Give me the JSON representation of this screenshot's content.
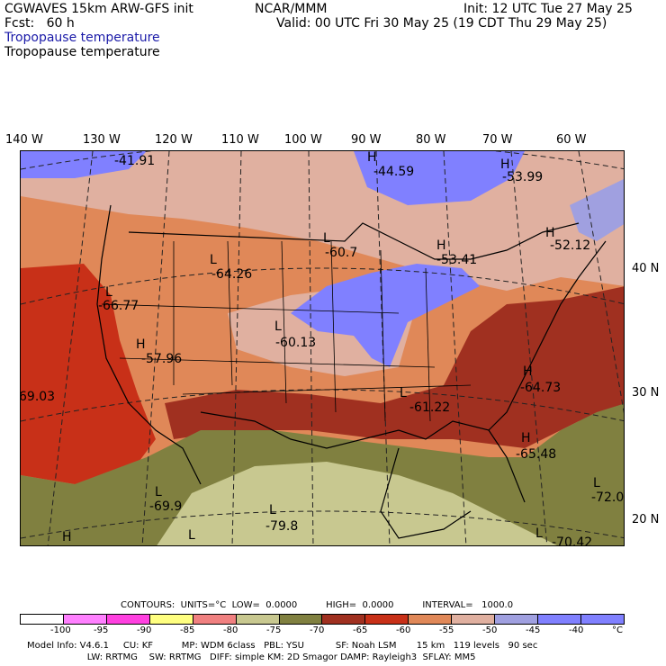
{
  "header": {
    "model": "CGWAVES 15km ARW-GFS init",
    "org": "NCAR/MMM",
    "init": "Init: 12 UTC Tue 27 May 25",
    "fcst": "Fcst:   60 h",
    "valid": "Valid: 00 UTC Fri 30 May 25 (19 CDT Thu 29 May 25)",
    "field1": "Tropopause temperature",
    "field2": "Tropopause temperature"
  },
  "map": {
    "lon_labels": [
      "140 W",
      "130 W",
      "120 W",
      "110 W",
      "100 W",
      "90 W",
      "80 W",
      "70 W",
      "60 W"
    ],
    "lat_labels": [
      "40 N",
      "30 N",
      "20 N"
    ],
    "extrema": [
      {
        "kind": "",
        "value": "-41.91"
      },
      {
        "kind": "H",
        "value": "-44.59"
      },
      {
        "kind": "H",
        "value": "-53.99"
      },
      {
        "kind": "L",
        "value": "-60.7"
      },
      {
        "kind": "H",
        "value": "-53.41"
      },
      {
        "kind": "H",
        "value": "-52.12"
      },
      {
        "kind": "L",
        "value": "-64.26"
      },
      {
        "kind": "L",
        "value": "-66.77"
      },
      {
        "kind": "L",
        "value": "-60.13"
      },
      {
        "kind": "H",
        "value": "-57.96"
      },
      {
        "kind": "",
        "value": "69.03"
      },
      {
        "kind": "H",
        "value": "-64.73"
      },
      {
        "kind": "L",
        "value": "-61.22"
      },
      {
        "kind": "H",
        "value": "-65.48"
      },
      {
        "kind": "L",
        "value": "-72.0"
      },
      {
        "kind": "L",
        "value": "-69.9"
      },
      {
        "kind": "L",
        "value": "-79.8"
      },
      {
        "kind": "L",
        "value": "-70.42"
      },
      {
        "kind": "H",
        "value": ""
      },
      {
        "kind": "L",
        "value": ""
      }
    ]
  },
  "contours": {
    "line": "CONTOURS:  UNITS=°C  LOW=  0.0000          HIGH=  0.0000          INTERVAL=   1000.0"
  },
  "colorbar": {
    "colors": [
      "#ffffff",
      "#ff80ff",
      "#ff40e0",
      "#ffff80",
      "#f08080",
      "#c8c890",
      "#808040",
      "#a03020",
      "#c83018",
      "#e08858",
      "#e0b0a0",
      "#a0a0e0",
      "#8080ff",
      "#8080ff"
    ],
    "labels": [
      "-100",
      "-95",
      "-90",
      "-85",
      "-80",
      "-75",
      "-70",
      "-65",
      "-60",
      "-55",
      "-50",
      "-45",
      "-40",
      "°C"
    ]
  },
  "footer": {
    "line1": "Model Info: V4.6.1     CU: KF          MP: WDM 6class   PBL: YSU           SF: Noah LSM       15 km   119 levels   90 sec",
    "line2": "                     LW: RRTMG    SW: RRTMG   DIFF: simple KM: 2D Smagor DAMP: Rayleigh3  SFLAY: MM5"
  }
}
